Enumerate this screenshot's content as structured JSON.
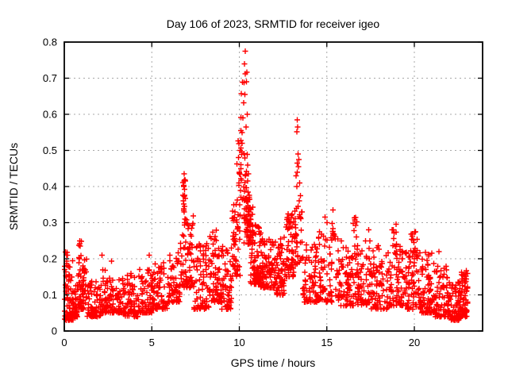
{
  "chart_data": {
    "type": "scatter",
    "title": "Day 106 of 2023, SRMTID for receiver igeo",
    "xlabel": "GPS time / hours",
    "ylabel": "SRMTID / TECUs",
    "xlim": [
      0,
      23.9
    ],
    "ylim": [
      0,
      0.8
    ],
    "grid": true,
    "legend": "none",
    "marker": {
      "shape": "plus",
      "color": "#ff0000",
      "size": 7
    },
    "grid_color": "#a8a8a8",
    "xticks": {
      "values": [
        0,
        5,
        10,
        15,
        20
      ],
      "labels": [
        "0",
        "5",
        "10",
        "15",
        "20"
      ]
    },
    "yticks": {
      "values": [
        0,
        0.1,
        0.2,
        0.3,
        0.4,
        0.5,
        0.6,
        0.7,
        0.8
      ],
      "labels": [
        "0",
        "0.1",
        "0.2",
        "0.3",
        "0.4",
        "0.5",
        "0.6",
        "0.7",
        "0.8"
      ]
    },
    "peak_points": [
      [
        10.35,
        0.775
      ],
      [
        10.3,
        0.74
      ],
      [
        10.42,
        0.716
      ],
      [
        10.33,
        0.712
      ],
      [
        10.4,
        0.69
      ],
      [
        10.28,
        0.688
      ],
      [
        10.32,
        0.655
      ],
      [
        10.25,
        0.632
      ],
      [
        10.45,
        0.6
      ],
      [
        10.2,
        0.59
      ],
      [
        10.38,
        0.565
      ],
      [
        10.1,
        0.555
      ],
      [
        10.15,
        0.52
      ],
      [
        10.05,
        0.5
      ],
      [
        9.95,
        0.48
      ],
      [
        10.0,
        0.44
      ],
      [
        13.3,
        0.585
      ],
      [
        13.33,
        0.565
      ],
      [
        13.28,
        0.552
      ],
      [
        13.35,
        0.49
      ],
      [
        13.4,
        0.475
      ],
      [
        13.31,
        0.465
      ],
      [
        13.37,
        0.455
      ],
      [
        13.32,
        0.44
      ],
      [
        13.25,
        0.43
      ],
      [
        13.45,
        0.41
      ],
      [
        13.29,
        0.4
      ],
      [
        13.5,
        0.375
      ],
      [
        13.42,
        0.36
      ],
      [
        13.36,
        0.345
      ],
      [
        13.55,
        0.33
      ],
      [
        6.84,
        0.435
      ],
      [
        6.86,
        0.415
      ],
      [
        6.83,
        0.4
      ],
      [
        6.88,
        0.392
      ],
      [
        6.85,
        0.372
      ],
      [
        6.82,
        0.352
      ],
      [
        6.87,
        0.345
      ],
      [
        6.84,
        0.33
      ],
      [
        6.9,
        0.31
      ],
      [
        6.86,
        0.3
      ],
      [
        2.15,
        0.21
      ],
      [
        2.7,
        0.193
      ],
      [
        4.85,
        0.21
      ],
      [
        0.88,
        0.25
      ],
      [
        0.85,
        0.237
      ],
      [
        14.9,
        0.315
      ],
      [
        15.0,
        0.3
      ],
      [
        17.4,
        0.28
      ],
      [
        21.4,
        0.22
      ]
    ],
    "clusters": [
      {
        "x0": 0.0,
        "x1": 0.5,
        "n": 70,
        "y0": 0.03,
        "y1": 0.2,
        "p": 2.2
      },
      {
        "x0": 0.05,
        "x1": 0.18,
        "n": 12,
        "y0": 0.1,
        "y1": 0.22,
        "p": 1.2
      },
      {
        "x0": 0.5,
        "x1": 0.8,
        "n": 40,
        "y0": 0.04,
        "y1": 0.13,
        "p": 2.0
      },
      {
        "x0": 0.8,
        "x1": 1.0,
        "n": 30,
        "y0": 0.06,
        "y1": 0.25,
        "p": 1.6
      },
      {
        "x0": 1.0,
        "x1": 1.3,
        "n": 30,
        "y0": 0.06,
        "y1": 0.22,
        "p": 2.0
      },
      {
        "x0": 1.3,
        "x1": 2.1,
        "n": 70,
        "y0": 0.04,
        "y1": 0.14,
        "p": 2.0
      },
      {
        "x0": 2.1,
        "x1": 2.4,
        "n": 25,
        "y0": 0.05,
        "y1": 0.17,
        "p": 2.0
      },
      {
        "x0": 2.4,
        "x1": 3.4,
        "n": 80,
        "y0": 0.05,
        "y1": 0.15,
        "p": 2.0
      },
      {
        "x0": 3.4,
        "x1": 4.2,
        "n": 70,
        "y0": 0.04,
        "y1": 0.16,
        "p": 2.0
      },
      {
        "x0": 4.2,
        "x1": 5.0,
        "n": 70,
        "y0": 0.05,
        "y1": 0.17,
        "p": 2.0
      },
      {
        "x0": 5.0,
        "x1": 6.0,
        "n": 80,
        "y0": 0.06,
        "y1": 0.19,
        "p": 2.0
      },
      {
        "x0": 6.0,
        "x1": 6.6,
        "n": 55,
        "y0": 0.08,
        "y1": 0.22,
        "p": 1.8
      },
      {
        "x0": 6.6,
        "x1": 6.95,
        "n": 25,
        "y0": 0.12,
        "y1": 0.27,
        "p": 1.5
      },
      {
        "x0": 6.78,
        "x1": 6.95,
        "n": 14,
        "y0": 0.27,
        "y1": 0.435,
        "p": 1.0
      },
      {
        "x0": 6.95,
        "x1": 7.4,
        "n": 45,
        "y0": 0.12,
        "y1": 0.32,
        "p": 1.8
      },
      {
        "x0": 7.4,
        "x1": 8.3,
        "n": 80,
        "y0": 0.06,
        "y1": 0.25,
        "p": 1.8
      },
      {
        "x0": 8.3,
        "x1": 9.0,
        "n": 70,
        "y0": 0.08,
        "y1": 0.28,
        "p": 1.7
      },
      {
        "x0": 9.0,
        "x1": 9.6,
        "n": 60,
        "y0": 0.06,
        "y1": 0.24,
        "p": 1.8
      },
      {
        "x0": 9.6,
        "x1": 10.05,
        "n": 50,
        "y0": 0.15,
        "y1": 0.38,
        "p": 1.5
      },
      {
        "x0": 9.85,
        "x1": 10.1,
        "n": 14,
        "y0": 0.3,
        "y1": 0.55,
        "p": 1.0
      },
      {
        "x0": 10.05,
        "x1": 10.18,
        "n": 12,
        "y0": 0.35,
        "y1": 0.7,
        "p": 1.0
      },
      {
        "x0": 10.2,
        "x1": 10.6,
        "n": 40,
        "y0": 0.3,
        "y1": 0.5,
        "p": 1.5
      },
      {
        "x0": 10.25,
        "x1": 10.8,
        "n": 50,
        "y0": 0.24,
        "y1": 0.35,
        "p": 1.2
      },
      {
        "x0": 10.6,
        "x1": 11.2,
        "n": 80,
        "y0": 0.13,
        "y1": 0.3,
        "p": 1.6
      },
      {
        "x0": 11.2,
        "x1": 12.0,
        "n": 85,
        "y0": 0.12,
        "y1": 0.28,
        "p": 1.7
      },
      {
        "x0": 12.0,
        "x1": 12.6,
        "n": 70,
        "y0": 0.1,
        "y1": 0.26,
        "p": 1.7
      },
      {
        "x0": 12.6,
        "x1": 13.15,
        "n": 60,
        "y0": 0.15,
        "y1": 0.33,
        "p": 1.5
      },
      {
        "x0": 13.15,
        "x1": 13.6,
        "n": 30,
        "y0": 0.18,
        "y1": 0.34,
        "p": 1.4
      },
      {
        "x0": 13.6,
        "x1": 14.5,
        "n": 75,
        "y0": 0.08,
        "y1": 0.24,
        "p": 1.8
      },
      {
        "x0": 14.5,
        "x1": 15.3,
        "n": 70,
        "y0": 0.08,
        "y1": 0.28,
        "p": 1.7
      },
      {
        "x0": 15.3,
        "x1": 15.5,
        "n": 10,
        "y0": 0.24,
        "y1": 0.345,
        "p": 1.0
      },
      {
        "x0": 15.5,
        "x1": 16.4,
        "n": 75,
        "y0": 0.07,
        "y1": 0.26,
        "p": 1.8
      },
      {
        "x0": 16.5,
        "x1": 16.8,
        "n": 8,
        "y0": 0.26,
        "y1": 0.325,
        "p": 1.0
      },
      {
        "x0": 16.4,
        "x1": 17.5,
        "n": 85,
        "y0": 0.07,
        "y1": 0.25,
        "p": 1.8
      },
      {
        "x0": 17.5,
        "x1": 18.6,
        "n": 85,
        "y0": 0.06,
        "y1": 0.25,
        "p": 1.8
      },
      {
        "x0": 18.7,
        "x1": 19.0,
        "n": 10,
        "y0": 0.22,
        "y1": 0.3,
        "p": 1.0
      },
      {
        "x0": 18.6,
        "x1": 19.6,
        "n": 80,
        "y0": 0.07,
        "y1": 0.24,
        "p": 1.8
      },
      {
        "x0": 19.6,
        "x1": 20.4,
        "n": 75,
        "y0": 0.06,
        "y1": 0.26,
        "p": 1.8
      },
      {
        "x0": 19.8,
        "x1": 20.1,
        "n": 6,
        "y0": 0.25,
        "y1": 0.3,
        "p": 1.0
      },
      {
        "x0": 20.4,
        "x1": 21.2,
        "n": 80,
        "y0": 0.05,
        "y1": 0.22,
        "p": 2.0
      },
      {
        "x0": 21.2,
        "x1": 22.0,
        "n": 80,
        "y0": 0.04,
        "y1": 0.18,
        "p": 2.0
      },
      {
        "x0": 22.0,
        "x1": 22.6,
        "n": 75,
        "y0": 0.03,
        "y1": 0.14,
        "p": 2.0
      },
      {
        "x0": 22.6,
        "x1": 23.05,
        "n": 70,
        "y0": 0.04,
        "y1": 0.17,
        "p": 1.8
      }
    ]
  }
}
